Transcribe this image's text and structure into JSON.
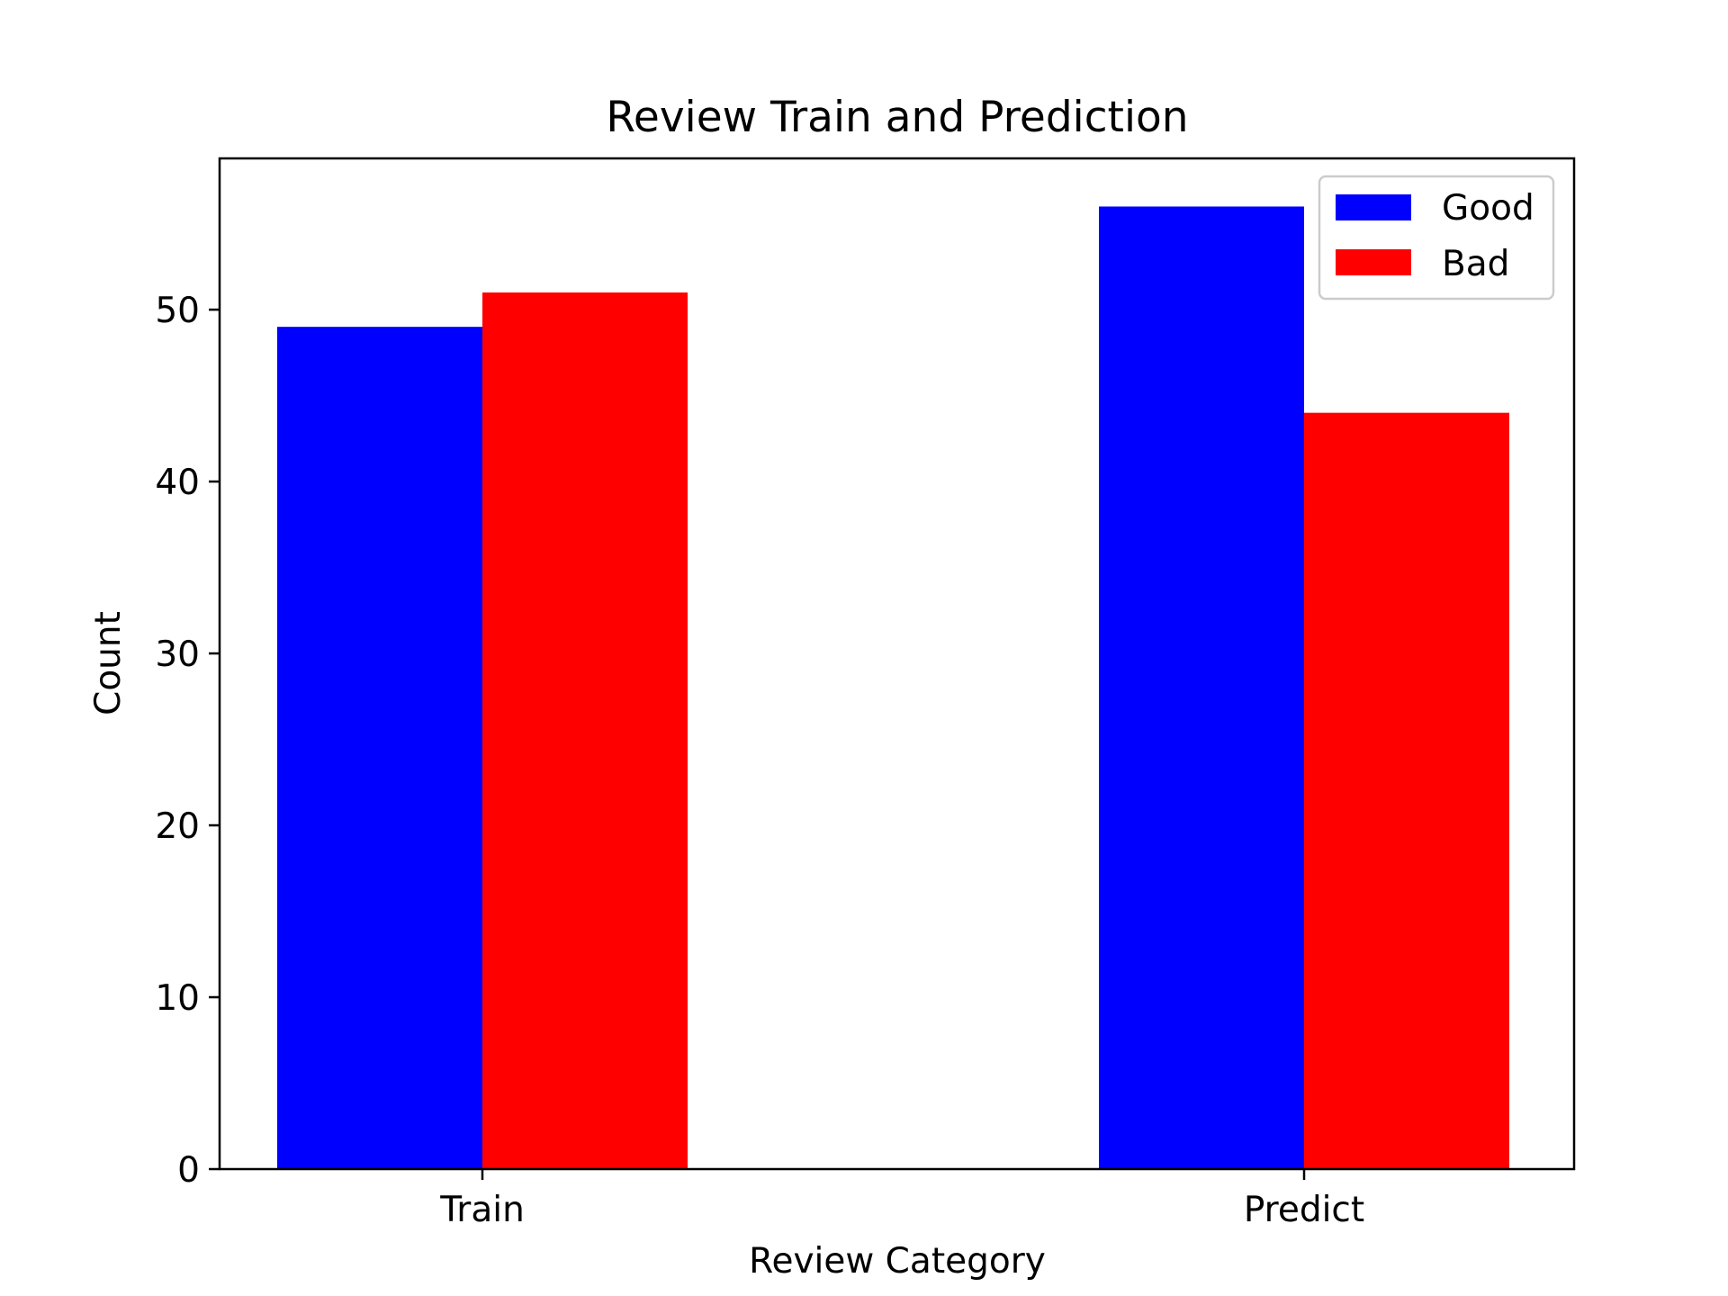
{
  "chart_data": {
    "type": "bar",
    "title": "Review Train and Prediction",
    "xlabel": "Review Category",
    "ylabel": "Count",
    "categories": [
      "Train",
      "Predict"
    ],
    "series": [
      {
        "name": "Good",
        "values": [
          49,
          56
        ],
        "color": "#0000ff"
      },
      {
        "name": "Bad",
        "values": [
          51,
          44
        ],
        "color": "#ff0000"
      }
    ],
    "ylim": [
      0,
      58.8
    ],
    "yticks": [
      0,
      10,
      20,
      30,
      40,
      50
    ],
    "ytick_labels": [
      "0",
      "10",
      "20",
      "30",
      "40",
      "50"
    ],
    "grid": false,
    "legend_position": "top-right"
  }
}
